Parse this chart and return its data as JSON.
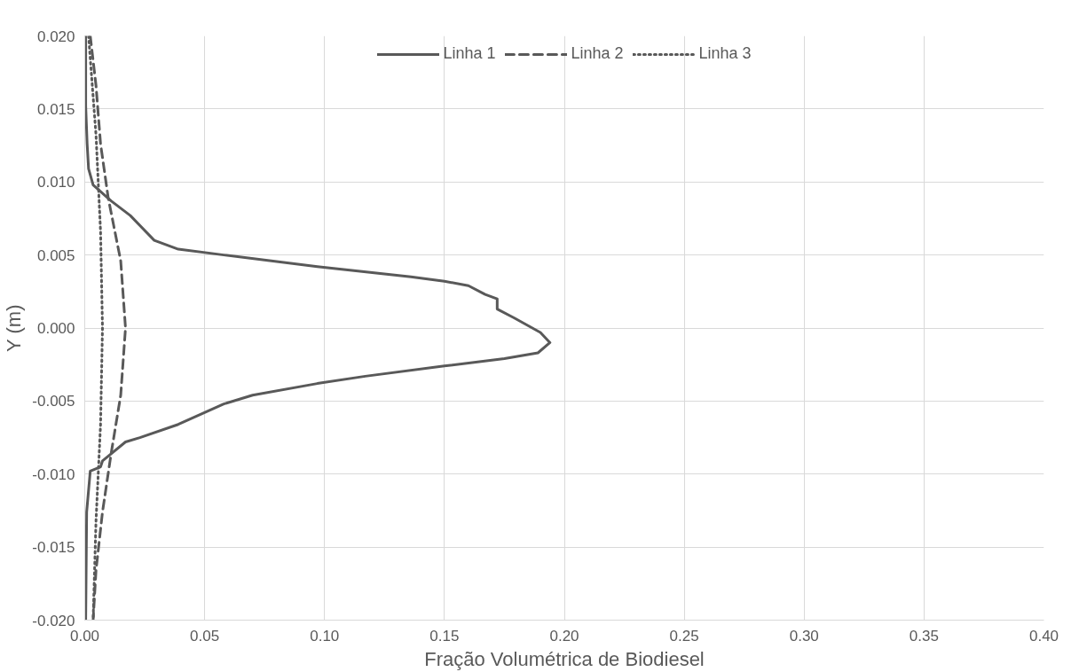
{
  "chart_data": {
    "type": "line",
    "xlabel": "Fração Volumétrica de Biodiesel",
    "ylabel": "Y (m)",
    "xlim": [
      0,
      0.4
    ],
    "ylim": [
      -0.02,
      0.02
    ],
    "xticks": [
      {
        "value": 0,
        "label": "0.00"
      },
      {
        "value": 0.05,
        "label": "0.05"
      },
      {
        "value": 0.1,
        "label": "0.10"
      },
      {
        "value": 0.15,
        "label": "0.15"
      },
      {
        "value": 0.2,
        "label": "0.20"
      },
      {
        "value": 0.25,
        "label": "0.25"
      },
      {
        "value": 0.3,
        "label": "0.30"
      },
      {
        "value": 0.35,
        "label": "0.35"
      },
      {
        "value": 0.4,
        "label": "0.40"
      }
    ],
    "yticks": [
      {
        "value": -0.02,
        "label": "-0.020"
      },
      {
        "value": -0.015,
        "label": "-0.015"
      },
      {
        "value": -0.01,
        "label": "-0.010"
      },
      {
        "value": -0.005,
        "label": "-0.005"
      },
      {
        "value": 0,
        "label": "0.000"
      },
      {
        "value": 0.005,
        "label": "0.005"
      },
      {
        "value": 0.01,
        "label": "0.010"
      },
      {
        "value": 0.015,
        "label": "0.015"
      },
      {
        "value": 0.02,
        "label": "0.020"
      }
    ],
    "grid": true,
    "legend": "top",
    "marker": "none",
    "series": [
      {
        "name": "Linha 1",
        "color": "#595959",
        "line_style": "solid",
        "x": [
          0.0004,
          0.0004,
          0.001,
          0.0016,
          0.0035,
          0.011,
          0.019,
          0.029,
          0.039,
          0.058,
          0.097,
          0.136,
          0.15,
          0.16,
          0.167,
          0.172,
          0.172,
          0.179,
          0.19,
          0.194,
          0.189,
          0.175,
          0.15,
          0.117,
          0.097,
          0.07,
          0.058,
          0.039,
          0.023,
          0.017,
          0.0074,
          0.0066,
          0.0023,
          0.0008,
          0.0004
        ],
        "values": [
          0.02,
          0.0152,
          0.0126,
          0.0109,
          0.0098,
          0.0087,
          0.0077,
          0.006,
          0.0054,
          0.005,
          0.0042,
          0.0035,
          0.0032,
          0.0029,
          0.0023,
          0.002,
          0.0013,
          0.0007,
          -0.0003,
          -0.001,
          -0.0017,
          -0.0021,
          -0.0026,
          -0.0033,
          -0.0038,
          -0.0046,
          -0.0052,
          -0.0066,
          -0.0075,
          -0.0078,
          -0.0091,
          -0.0095,
          -0.0098,
          -0.0126,
          -0.02
        ]
      },
      {
        "name": "Linha 2",
        "color": "#595959",
        "line_style": "dashed",
        "x": [
          0.0023,
          0.0047,
          0.0066,
          0.0098,
          0.015,
          0.017,
          0.015,
          0.011,
          0.0074,
          0.0047,
          0.0035
        ],
        "values": [
          0.02,
          0.0166,
          0.0126,
          0.0089,
          0.0046,
          0,
          -0.0046,
          -0.0086,
          -0.0126,
          -0.0166,
          -0.02
        ]
      },
      {
        "name": "Linha 3",
        "color": "#595959",
        "line_style": "dotted",
        "x": [
          0.0016,
          0.0047,
          0.0066,
          0.0074,
          0.0066,
          0.0047,
          0.0035
        ],
        "values": [
          0.02,
          0.0132,
          0.0066,
          0,
          -0.0066,
          -0.0132,
          -0.02
        ]
      }
    ]
  }
}
